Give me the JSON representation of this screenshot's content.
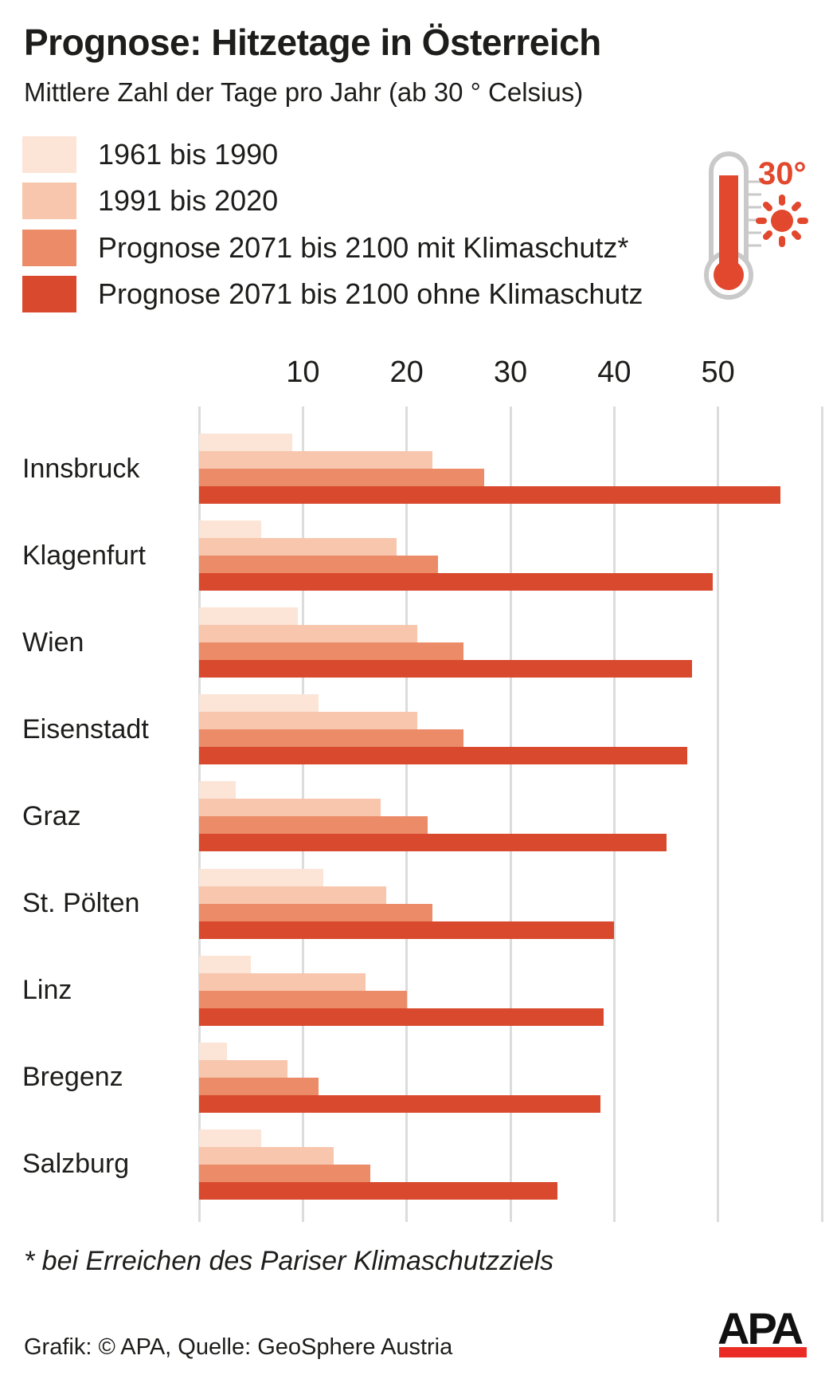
{
  "title": "Prognose: Hitzetage in Österreich",
  "subtitle": "Mittlere Zahl der Tage pro Jahr (ab 30 ° Celsius)",
  "legend": {
    "items": [
      {
        "label": "1961 bis 1990",
        "color": "#fce4d6"
      },
      {
        "label": "1991 bis 2020",
        "color": "#f7c6ac"
      },
      {
        "label": "Prognose 2071 bis 2100 mit Klimaschutz*",
        "color": "#eb8b68"
      },
      {
        "label": "Prognose 2071 bis 2100 ohne Klimaschutz",
        "color": "#d9492d"
      }
    ]
  },
  "thermometer": {
    "label": "30°",
    "accent_color": "#e2482e",
    "outline_color": "#c9c9c9"
  },
  "chart_data": {
    "type": "bar",
    "orientation": "horizontal",
    "title": "Prognose: Hitzetage in Österreich",
    "subtitle": "Mittlere Zahl der Tage pro Jahr (ab 30 ° Celsius)",
    "categories": [
      "Innsbruck",
      "Klagenfurt",
      "Wien",
      "Eisenstadt",
      "Graz",
      "St. Pölten",
      "Linz",
      "Bregenz",
      "Salzburg"
    ],
    "series": [
      {
        "name": "1961 bis 1990",
        "color": "#fce4d6",
        "values": [
          9,
          6,
          9.5,
          11.5,
          3.5,
          12,
          5,
          2.7,
          6
        ]
      },
      {
        "name": "1991 bis 2020",
        "color": "#f7c6ac",
        "values": [
          22.5,
          19,
          21,
          21,
          17.5,
          18,
          16,
          8.5,
          13
        ]
      },
      {
        "name": "Prognose 2071 bis 2100 mit Klimaschutz*",
        "color": "#eb8b68",
        "values": [
          27.5,
          23,
          25.5,
          25.5,
          22,
          22.5,
          20,
          11.5,
          16.5
        ]
      },
      {
        "name": "Prognose 2071 bis 2100 ohne Klimaschutz",
        "color": "#d9492d",
        "values": [
          56,
          49.5,
          47.5,
          47,
          45,
          40,
          39,
          38.7,
          34.5
        ]
      }
    ],
    "xticks": [
      10,
      20,
      30,
      40,
      50
    ],
    "xgrid": [
      0,
      10,
      20,
      30,
      40,
      50,
      60
    ],
    "xlim": [
      0,
      60
    ],
    "grid": true,
    "legend_position": "top-left",
    "gridline_color": "#dcdcdc"
  },
  "footnote": "* bei Erreichen des Pariser Klimaschutzziels",
  "credit": "Grafik: © APA, Quelle: GeoSphere Austria",
  "logo": {
    "text": "APA",
    "bar_color": "#ea2c25"
  }
}
